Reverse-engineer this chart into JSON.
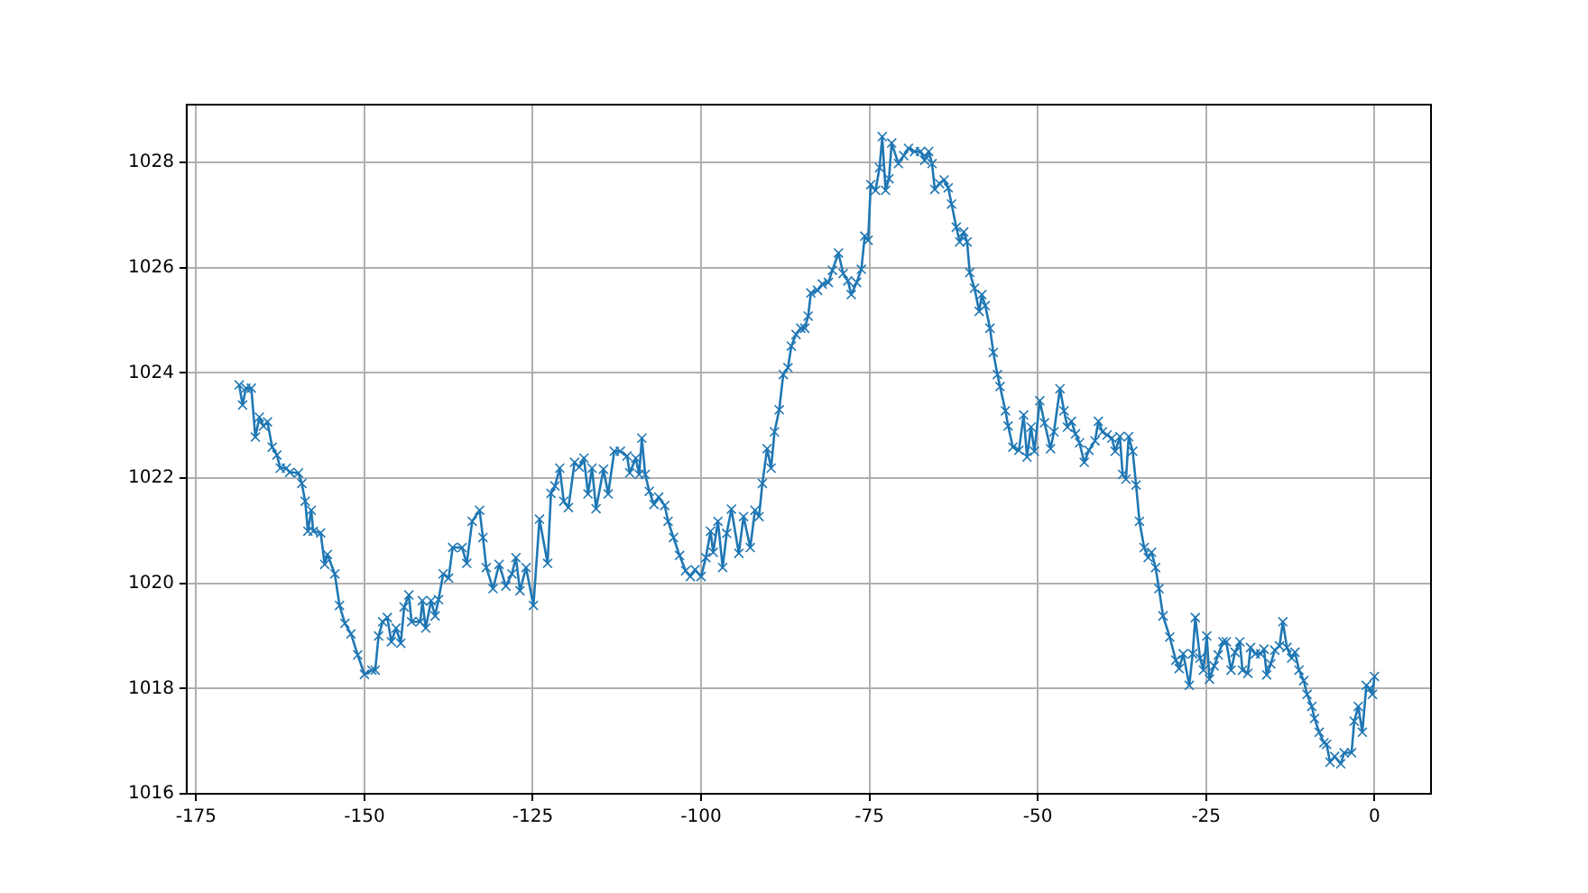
{
  "chart_data": {
    "type": "line",
    "x": [
      -168.6,
      -168.1,
      -167.6,
      -166.8,
      -166.2,
      -165.6,
      -165.0,
      -164.4,
      -163.7,
      -163.0,
      -162.5,
      -161.6,
      -161.1,
      -159.8,
      -159.3,
      -158.8,
      -158.4,
      -157.9,
      -157.6,
      -156.5,
      -155.9,
      -155.5,
      -154.4,
      -153.7,
      -152.9,
      -152.0,
      -151.0,
      -150.0,
      -148.9,
      -148.4,
      -147.9,
      -147.3,
      -146.6,
      -146.0,
      -145.3,
      -144.6,
      -144.1,
      -143.4,
      -143.0,
      -141.7,
      -141.4,
      -140.9,
      -140.1,
      -139.5,
      -139.0,
      -138.3,
      -137.5,
      -136.9,
      -135.5,
      -134.8,
      -134.0,
      -132.9,
      -132.4,
      -131.9,
      -130.9,
      -130.0,
      -129.0,
      -128.1,
      -127.5,
      -126.9,
      -126.0,
      -124.9,
      -124.0,
      -122.8,
      -122.3,
      -121.7,
      -121.0,
      -120.4,
      -119.7,
      -118.8,
      -118.1,
      -117.4,
      -116.8,
      -116.2,
      -115.6,
      -114.5,
      -113.8,
      -112.9,
      -112.0,
      -111.0,
      -110.6,
      -109.7,
      -109.2,
      -108.8,
      -108.3,
      -107.7,
      -107.0,
      -106.3,
      -105.4,
      -104.9,
      -104.1,
      -103.2,
      -102.3,
      -101.6,
      -100.9,
      -100.0,
      -99.3,
      -98.6,
      -98.2,
      -97.5,
      -96.8,
      -96.2,
      -95.5,
      -94.4,
      -93.7,
      -92.7,
      -92.0,
      -91.4,
      -90.9,
      -90.2,
      -89.6,
      -89.1,
      -88.4,
      -87.8,
      -87.1,
      -86.6,
      -85.9,
      -85.2,
      -84.6,
      -84.1,
      -83.7,
      -82.7,
      -82.0,
      -81.1,
      -80.5,
      -79.6,
      -78.9,
      -78.2,
      -77.7,
      -76.9,
      -76.2,
      -75.7,
      -75.2,
      -74.8,
      -74.1,
      -73.5,
      -73.1,
      -72.6,
      -72.1,
      -71.7,
      -70.7,
      -69.9,
      -69.2,
      -68.3,
      -67.4,
      -66.8,
      -66.2,
      -65.7,
      -65.3,
      -64.6,
      -63.9,
      -63.3,
      -62.8,
      -62.1,
      -61.6,
      -61.0,
      -60.5,
      -60.1,
      -59.4,
      -58.7,
      -58.3,
      -57.8,
      -57.1,
      -56.6,
      -56.0,
      -55.6,
      -54.8,
      -54.4,
      -53.7,
      -52.8,
      -52.1,
      -51.6,
      -51.0,
      -50.5,
      -49.7,
      -49.0,
      -48.1,
      -47.6,
      -46.7,
      -46.1,
      -45.6,
      -45.0,
      -44.4,
      -43.8,
      -43.1,
      -42.4,
      -41.5,
      -41.0,
      -40.4,
      -39.7,
      -39.0,
      -38.5,
      -37.8,
      -37.4,
      -36.9,
      -36.5,
      -35.9,
      -35.4,
      -34.9,
      -34.2,
      -33.6,
      -33.1,
      -32.5,
      -32.0,
      -31.4,
      -30.4,
      -29.5,
      -29.0,
      -28.4,
      -27.5,
      -27.0,
      -26.6,
      -25.9,
      -25.4,
      -24.9,
      -24.5,
      -23.8,
      -23.2,
      -22.5,
      -22.0,
      -21.3,
      -20.7,
      -20.0,
      -19.6,
      -18.8,
      -18.4,
      -17.7,
      -16.9,
      -16.4,
      -16.0,
      -15.4,
      -14.8,
      -14.1,
      -13.6,
      -13.0,
      -12.3,
      -11.8,
      -11.2,
      -10.5,
      -10.0,
      -9.3,
      -8.9,
      -8.2,
      -7.5,
      -7.1,
      -6.6,
      -5.9,
      -5.0,
      -4.5,
      -3.4,
      -3.0,
      -2.4,
      -1.8,
      -1.2,
      -0.7,
      -0.3,
      0.0
    ],
    "series": [
      {
        "color": "#1f77b4",
        "values": [
          1023.77,
          1023.39,
          1023.71,
          1023.71,
          1022.78,
          1023.16,
          1022.99,
          1023.07,
          1022.59,
          1022.44,
          1022.19,
          1022.19,
          1022.11,
          1022.1,
          1021.9,
          1021.56,
          1020.99,
          1021.39,
          1020.99,
          1020.96,
          1020.36,
          1020.55,
          1020.18,
          1019.58,
          1019.24,
          1019.04,
          1018.64,
          1018.27,
          1018.35,
          1018.35,
          1019.0,
          1019.27,
          1019.35,
          1018.89,
          1019.15,
          1018.86,
          1019.55,
          1019.78,
          1019.27,
          1019.27,
          1019.67,
          1019.15,
          1019.67,
          1019.38,
          1019.69,
          1020.18,
          1020.1,
          1020.68,
          1020.68,
          1020.38,
          1021.18,
          1021.39,
          1020.87,
          1020.3,
          1019.9,
          1020.36,
          1019.95,
          1020.18,
          1020.49,
          1019.86,
          1020.3,
          1019.58,
          1021.22,
          1020.38,
          1021.71,
          1021.85,
          1022.19,
          1021.56,
          1021.44,
          1022.3,
          1022.21,
          1022.38,
          1021.7,
          1022.19,
          1021.42,
          1022.17,
          1021.7,
          1022.51,
          1022.51,
          1022.42,
          1022.1,
          1022.38,
          1022.07,
          1022.76,
          1022.07,
          1021.75,
          1021.5,
          1021.64,
          1021.48,
          1021.18,
          1020.87,
          1020.53,
          1020.24,
          1020.13,
          1020.26,
          1020.13,
          1020.49,
          1020.99,
          1020.59,
          1021.18,
          1020.3,
          1020.95,
          1021.41,
          1020.57,
          1021.27,
          1020.68,
          1021.39,
          1021.27,
          1021.9,
          1022.56,
          1022.19,
          1022.88,
          1023.3,
          1023.97,
          1024.1,
          1024.51,
          1024.73,
          1024.85,
          1024.85,
          1025.08,
          1025.52,
          1025.57,
          1025.69,
          1025.72,
          1025.95,
          1026.28,
          1025.89,
          1025.75,
          1025.49,
          1025.72,
          1025.97,
          1026.6,
          1026.52,
          1027.58,
          1027.47,
          1027.9,
          1028.49,
          1027.47,
          1027.69,
          1028.37,
          1027.98,
          1028.13,
          1028.27,
          1028.21,
          1028.21,
          1028.04,
          1028.21,
          1027.98,
          1027.49,
          1027.6,
          1027.67,
          1027.52,
          1027.21,
          1026.77,
          1026.49,
          1026.68,
          1026.49,
          1025.91,
          1025.61,
          1025.17,
          1025.49,
          1025.28,
          1024.85,
          1024.39,
          1023.97,
          1023.74,
          1023.28,
          1022.99,
          1022.59,
          1022.53,
          1023.2,
          1022.4,
          1022.97,
          1022.51,
          1023.47,
          1023.05,
          1022.56,
          1022.88,
          1023.7,
          1023.28,
          1022.97,
          1023.08,
          1022.84,
          1022.67,
          1022.3,
          1022.53,
          1022.71,
          1023.08,
          1022.88,
          1022.82,
          1022.76,
          1022.51,
          1022.79,
          1022.07,
          1021.98,
          1022.79,
          1022.51,
          1021.87,
          1021.18,
          1020.68,
          1020.49,
          1020.59,
          1020.3,
          1019.9,
          1019.38,
          1018.98,
          1018.54,
          1018.38,
          1018.66,
          1018.06,
          1018.66,
          1019.35,
          1018.58,
          1018.35,
          1019.0,
          1018.18,
          1018.43,
          1018.64,
          1018.89,
          1018.89,
          1018.35,
          1018.69,
          1018.89,
          1018.35,
          1018.29,
          1018.78,
          1018.66,
          1018.66,
          1018.75,
          1018.26,
          1018.47,
          1018.73,
          1018.81,
          1019.27,
          1018.78,
          1018.58,
          1018.69,
          1018.35,
          1018.15,
          1017.89,
          1017.66,
          1017.43,
          1017.17,
          1016.97,
          1016.94,
          1016.6,
          1016.71,
          1016.57,
          1016.78,
          1016.78,
          1017.38,
          1017.66,
          1017.17,
          1018.06,
          1018.0,
          1017.89,
          1018.23
        ]
      }
    ],
    "xlim": [
      -176.4,
      8.4
    ],
    "xticks": [
      -175,
      -150,
      -125,
      -100,
      -75,
      -50,
      -25,
      0
    ],
    "ylim": [
      1016,
      1029.1
    ],
    "yticks": [
      1016,
      1018,
      1020,
      1022,
      1024,
      1026,
      1028
    ],
    "grid": true,
    "marker": "cross",
    "line_style": "solid",
    "legend": false
  }
}
